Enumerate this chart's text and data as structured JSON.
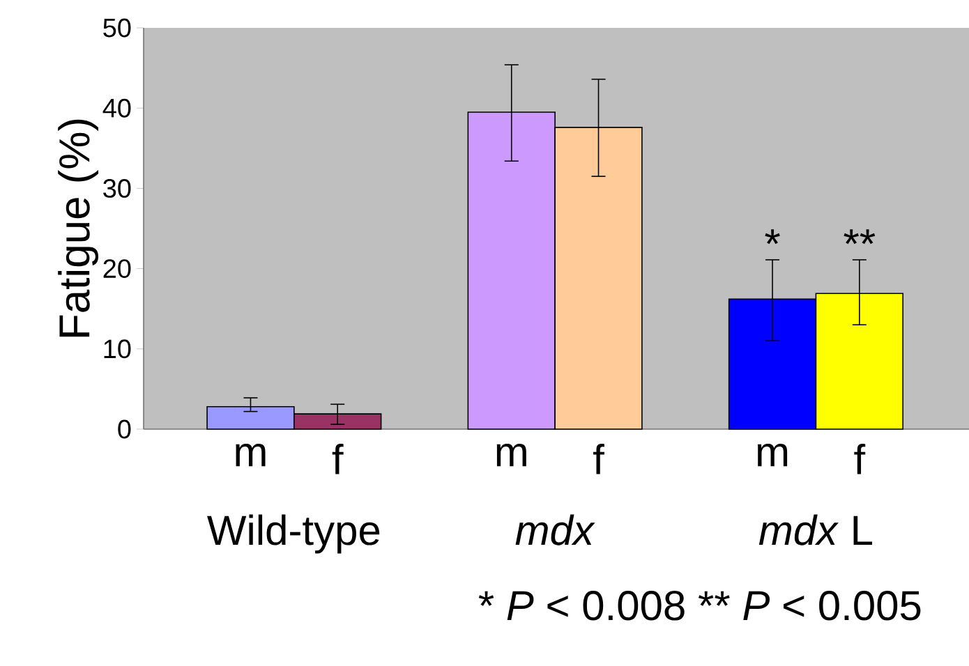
{
  "chart_data": {
    "type": "bar",
    "ylabel": "Fatigue (%)",
    "categories": [
      "m",
      "f",
      "m",
      "f",
      "m",
      "f"
    ],
    "values": [
      2.8,
      1.9,
      39.5,
      37.6,
      16.2,
      16.9
    ],
    "colors": [
      "#9999ff",
      "#993366",
      "#cc99ff",
      "#ffcc99",
      "#0000ff",
      "#ffff00"
    ],
    "errors": [
      [
        2.2,
        3.9
      ],
      [
        0.6,
        3.1
      ],
      [
        33.4,
        45.4
      ],
      [
        31.5,
        43.6
      ],
      [
        11.0,
        21.1
      ],
      [
        13.0,
        21.1
      ]
    ],
    "value_labels": [
      null,
      null,
      null,
      null,
      "*",
      "**"
    ],
    "ylim": [
      0,
      50
    ],
    "yticks": [
      0,
      10,
      20,
      30,
      40,
      50
    ],
    "annotations": [
      "Wild-type",
      "*mdx*",
      "*mdx* L",
      "* *P* < 0.008   ** *P* < 0.005"
    ]
  }
}
